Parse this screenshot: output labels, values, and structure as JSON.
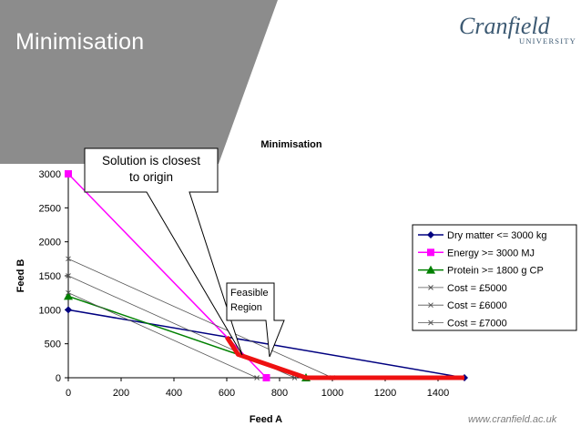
{
  "slide": {
    "title": "Minimisation",
    "logo_name": "Cranfield",
    "logo_sub": "UNIVERSITY",
    "footer_url": "www.cranfield.ac.uk"
  },
  "colors": {
    "header_gray": "#8c8c8c",
    "feasible_red": "#ee1111",
    "dry_matter": "#000080",
    "energy": "#ff00ff",
    "protein": "#008000",
    "cost": "#555555"
  },
  "annotations": {
    "solution_line1": "Solution is closest",
    "solution_line2": "to origin",
    "feasible_line1": "Feasible",
    "feasible_line2": "Region"
  },
  "chart_data": {
    "type": "line",
    "title": "Minimisation",
    "xlabel": "Feed A",
    "ylabel": "Feed B",
    "xlim": [
      0,
      1500
    ],
    "ylim": [
      0,
      3000
    ],
    "x_ticks": [
      "0",
      "200",
      "400",
      "600",
      "800",
      "1000",
      "1200",
      "1400"
    ],
    "y_ticks": [
      "0",
      "500",
      "1000",
      "1500",
      "2000",
      "2500",
      "3000"
    ],
    "legend_position": "right",
    "series": [
      {
        "name": "Dry matter <= 3000 kg",
        "color": "#000080",
        "marker": "diamond",
        "points": [
          [
            0,
            1000
          ],
          [
            1500,
            0
          ]
        ]
      },
      {
        "name": "Energy >= 3000 MJ",
        "color": "#ff00ff",
        "marker": "square",
        "points": [
          [
            0,
            3000
          ],
          [
            750,
            0
          ]
        ]
      },
      {
        "name": "Protein >= 1800 g CP",
        "color": "#008000",
        "marker": "triangle",
        "points": [
          [
            0,
            1200
          ],
          [
            900,
            0
          ]
        ]
      },
      {
        "name": "Cost = £5000",
        "color": "#555555",
        "marker": "x",
        "points": [
          [
            0,
            1250
          ],
          [
            714,
            0
          ]
        ]
      },
      {
        "name": "Cost = £6000",
        "color": "#555555",
        "marker": "x",
        "points": [
          [
            0,
            1500
          ],
          [
            857,
            0
          ]
        ]
      },
      {
        "name": "Cost = £7000",
        "color": "#555555",
        "marker": "x",
        "points": [
          [
            0,
            1750
          ],
          [
            1000,
            0
          ]
        ]
      }
    ],
    "feasible_region_boundary": [
      [
        600,
        600
      ],
      [
        643,
        343
      ],
      [
        900,
        0
      ],
      [
        1500,
        0
      ]
    ]
  }
}
